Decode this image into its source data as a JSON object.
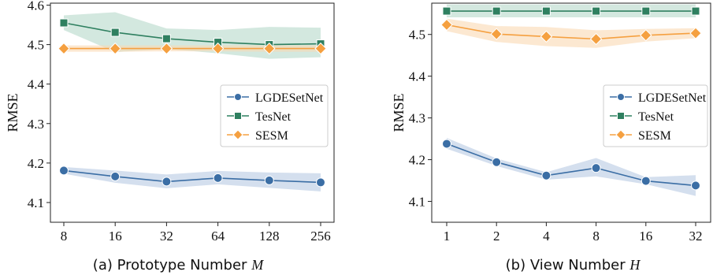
{
  "chart_data": [
    {
      "type": "line",
      "caption_prefix": "(a) Prototype Number ",
      "caption_var": "M",
      "ylabel": "RMSE",
      "xlabel": "",
      "categories": [
        "8",
        "16",
        "32",
        "64",
        "128",
        "256"
      ],
      "ylim": [
        4.05,
        4.605
      ],
      "yticks": [
        "4.1",
        "4.2",
        "4.3",
        "4.4",
        "4.5",
        "4.6"
      ],
      "ytick_values": [
        4.1,
        4.2,
        4.3,
        4.4,
        4.5,
        4.6
      ],
      "legend_position": "right-middle",
      "grid": false,
      "series": [
        {
          "name": "LGDESetNet",
          "color": "#3b6ea5",
          "fill": "#b8c9e3",
          "marker": "circle",
          "values": [
            4.181,
            4.166,
            4.153,
            4.162,
            4.156,
            4.151
          ],
          "lower": [
            4.173,
            4.15,
            4.136,
            4.146,
            4.137,
            4.128
          ],
          "upper": [
            4.19,
            4.181,
            4.171,
            4.18,
            4.176,
            4.174
          ]
        },
        {
          "name": "TesNet",
          "color": "#2f8060",
          "fill": "#b5d8c9",
          "marker": "square",
          "values": [
            4.555,
            4.531,
            4.515,
            4.506,
            4.5,
            4.502
          ],
          "lower": [
            4.537,
            4.481,
            4.489,
            4.478,
            4.464,
            4.468
          ],
          "upper": [
            4.574,
            4.582,
            4.541,
            4.537,
            4.545,
            4.543
          ]
        },
        {
          "name": "SESM",
          "color": "#f5a040",
          "fill": "#fad9b3",
          "marker": "diamond",
          "values": [
            4.49,
            4.49,
            4.49,
            4.49,
            4.49,
            4.49
          ],
          "lower": [
            4.482,
            4.482,
            4.483,
            4.483,
            4.482,
            4.482
          ],
          "upper": [
            4.498,
            4.498,
            4.498,
            4.498,
            4.498,
            4.498
          ]
        }
      ]
    },
    {
      "type": "line",
      "caption_prefix": "(b) View Number ",
      "caption_var": "H",
      "ylabel": "RMSE",
      "xlabel": "",
      "categories": [
        "1",
        "2",
        "4",
        "8",
        "16",
        "32"
      ],
      "ylim": [
        4.05,
        4.575
      ],
      "yticks": [
        "4.1",
        "4.2",
        "4.3",
        "4.4",
        "4.5"
      ],
      "ytick_values": [
        4.1,
        4.2,
        4.3,
        4.4,
        4.5
      ],
      "legend_position": "right-middle",
      "grid": false,
      "series": [
        {
          "name": "LGDESetNet",
          "color": "#3b6ea5",
          "fill": "#b8c9e3",
          "marker": "circle",
          "values": [
            4.238,
            4.194,
            4.162,
            4.18,
            4.149,
            4.138
          ],
          "lower": [
            4.226,
            4.185,
            4.152,
            4.16,
            4.141,
            4.113
          ],
          "upper": [
            4.252,
            4.203,
            4.17,
            4.204,
            4.158,
            4.163
          ]
        },
        {
          "name": "TesNet",
          "color": "#2f8060",
          "fill": "#b5d8c9",
          "marker": "square",
          "values": [
            4.556,
            4.556,
            4.556,
            4.556,
            4.556,
            4.556
          ],
          "lower": [
            4.541,
            4.541,
            4.541,
            4.541,
            4.541,
            4.541
          ],
          "upper": [
            4.572,
            4.572,
            4.572,
            4.572,
            4.572,
            4.572
          ]
        },
        {
          "name": "SESM",
          "color": "#f5a040",
          "fill": "#fad9b3",
          "marker": "diamond",
          "values": [
            4.523,
            4.501,
            4.495,
            4.489,
            4.498,
            4.503
          ],
          "lower": [
            4.508,
            4.482,
            4.472,
            4.468,
            4.483,
            4.491
          ],
          "upper": [
            4.538,
            4.52,
            4.518,
            4.51,
            4.513,
            4.515
          ]
        }
      ]
    }
  ]
}
